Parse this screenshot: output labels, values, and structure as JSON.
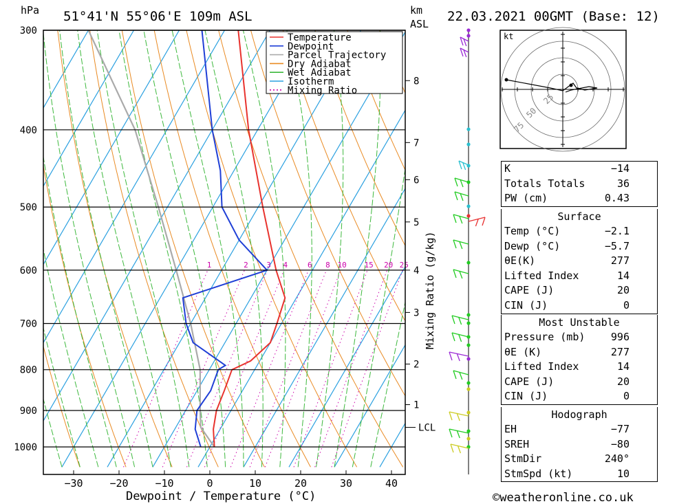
{
  "header": {
    "hpa_label": "hPa",
    "location": "51°41'N  55°06'E  109m  ASL",
    "km_label": "km",
    "asl_label": "ASL",
    "datetime": "22.03.2021  00GMT  (Base: 12)"
  },
  "footer": {
    "xlabel": "Dewpoint / Temperature (°C)",
    "credit": "©weatheronline.co.uk"
  },
  "legend": [
    {
      "label": "Temperature",
      "color": "#e8322d",
      "style": "solid"
    },
    {
      "label": "Dewpoint",
      "color": "#1f3fd6",
      "style": "solid"
    },
    {
      "label": "Parcel Trajectory",
      "color": "#aaaaaa",
      "style": "solid"
    },
    {
      "label": "Dry Adiabat",
      "color": "#e98a22",
      "style": "solid"
    },
    {
      "label": "Wet Adiabat",
      "color": "#3cb83c",
      "style": "solid"
    },
    {
      "label": "Isotherm",
      "color": "#2aa0e0",
      "style": "solid"
    },
    {
      "label": "Mixing Ratio",
      "color": "#cc00aa",
      "style": "dotted"
    }
  ],
  "colors": {
    "temperature": "#e8322d",
    "dewpoint": "#1f3fd6",
    "parcel": "#aaaaaa",
    "dry_adiabat": "#e98a22",
    "wet_adiabat": "#3cb83c",
    "isotherm": "#2aa0e0",
    "mixing_ratio": "#cc00aa"
  },
  "chart_data": {
    "type": "line",
    "title": "",
    "xlabel": "Dewpoint / Temperature (°C)",
    "ylabel": "hPa",
    "y_scale": "log-pressure",
    "xlim": [
      -37,
      42
    ],
    "ylim": [
      1050,
      300
    ],
    "x_ticks": [
      -30,
      -20,
      -10,
      0,
      10,
      20,
      30,
      40
    ],
    "x_tick_labels": [
      "−30",
      "−20",
      "−10",
      "0",
      "10",
      "20",
      "30",
      "40"
    ],
    "y_ticks": [
      300,
      400,
      500,
      600,
      700,
      800,
      900,
      1000
    ],
    "y_tick_labels": [
      "300",
      "400",
      "500",
      "600",
      "700",
      "800",
      "900",
      "1000"
    ],
    "km_ticks": [
      {
        "label": "8",
        "p": 347
      },
      {
        "label": "7",
        "p": 415
      },
      {
        "label": "6",
        "p": 462
      },
      {
        "label": "5",
        "p": 522
      },
      {
        "label": "4",
        "p": 600
      },
      {
        "label": "3",
        "p": 678
      },
      {
        "label": "2",
        "p": 787
      },
      {
        "label": "1",
        "p": 885
      }
    ],
    "lcl": {
      "label": "LCL",
      "p": 945
    },
    "mixing_ratio_axis_label": "Mixing Ratio (g/kg)",
    "mixing_ratio_labels": [
      "1",
      "2",
      "3",
      "4",
      "6",
      "8",
      "10",
      "15",
      "20",
      "25"
    ],
    "series": [
      {
        "name": "Temperature",
        "points": [
          {
            "p": 1000,
            "t": 1
          },
          {
            "p": 950,
            "t": -1.5
          },
          {
            "p": 900,
            "t": -3.2
          },
          {
            "p": 850,
            "t": -4
          },
          {
            "p": 800,
            "t": -5
          },
          {
            "p": 780,
            "t": -2
          },
          {
            "p": 740,
            "t": 0
          },
          {
            "p": 700,
            "t": -1
          },
          {
            "p": 650,
            "t": -2.5
          },
          {
            "p": 600,
            "t": -8
          },
          {
            "p": 500,
            "t": -19
          },
          {
            "p": 400,
            "t": -32
          },
          {
            "p": 300,
            "t": -47
          }
        ]
      },
      {
        "name": "Dewpoint",
        "points": [
          {
            "p": 1000,
            "t": -2
          },
          {
            "p": 950,
            "t": -5.5
          },
          {
            "p": 900,
            "t": -7.5
          },
          {
            "p": 850,
            "t": -7
          },
          {
            "p": 800,
            "t": -8
          },
          {
            "p": 790,
            "t": -7
          },
          {
            "p": 740,
            "t": -17
          },
          {
            "p": 700,
            "t": -21
          },
          {
            "p": 650,
            "t": -25
          },
          {
            "p": 600,
            "t": -10
          },
          {
            "p": 550,
            "t": -20
          },
          {
            "p": 500,
            "t": -28
          },
          {
            "p": 450,
            "t": -33
          },
          {
            "p": 400,
            "t": -40
          },
          {
            "p": 300,
            "t": -55
          }
        ]
      },
      {
        "name": "Parcel Trajectory",
        "points": [
          {
            "p": 1000,
            "t": 1
          },
          {
            "p": 945,
            "t": -4.5
          },
          {
            "p": 900,
            "t": -6.8
          },
          {
            "p": 800,
            "t": -12
          },
          {
            "p": 700,
            "t": -20
          },
          {
            "p": 600,
            "t": -30
          },
          {
            "p": 500,
            "t": -42
          },
          {
            "p": 400,
            "t": -57
          },
          {
            "p": 300,
            "t": -80
          }
        ]
      }
    ]
  },
  "hodograph": {
    "unit_label": "kt",
    "ring_labels": [
      "25",
      "50",
      "75"
    ]
  },
  "indices": {
    "rows": [
      {
        "label": "K",
        "value": "−14"
      },
      {
        "label": "Totals Totals",
        "value": "36"
      },
      {
        "label": "PW (cm)",
        "value": "0.43"
      }
    ]
  },
  "surface": {
    "title": "Surface",
    "rows": [
      {
        "label": "Temp (°C)",
        "value": "−2.1"
      },
      {
        "label": "Dewp (°C)",
        "value": "−5.7"
      },
      {
        "label": "θE(K)",
        "value": "277"
      },
      {
        "label": "Lifted Index",
        "value": "14"
      },
      {
        "label": "CAPE (J)",
        "value": "20"
      },
      {
        "label": "CIN (J)",
        "value": "0"
      }
    ]
  },
  "most_unstable": {
    "title": "Most Unstable",
    "rows": [
      {
        "label": "Pressure (mb)",
        "value": "996"
      },
      {
        "label": "θE (K)",
        "value": "277"
      },
      {
        "label": "Lifted Index",
        "value": "14"
      },
      {
        "label": "CAPE (J)",
        "value": "20"
      },
      {
        "label": "CIN (J)",
        "value": "0"
      }
    ]
  },
  "hodograph_table": {
    "title": "Hodograph",
    "rows": [
      {
        "label": "EH",
        "value": "−77"
      },
      {
        "label": "SREH",
        "value": "−80"
      },
      {
        "label": "StmDir",
        "value": "240°"
      },
      {
        "label": "StmSpd (kt)",
        "value": "10"
      }
    ]
  }
}
